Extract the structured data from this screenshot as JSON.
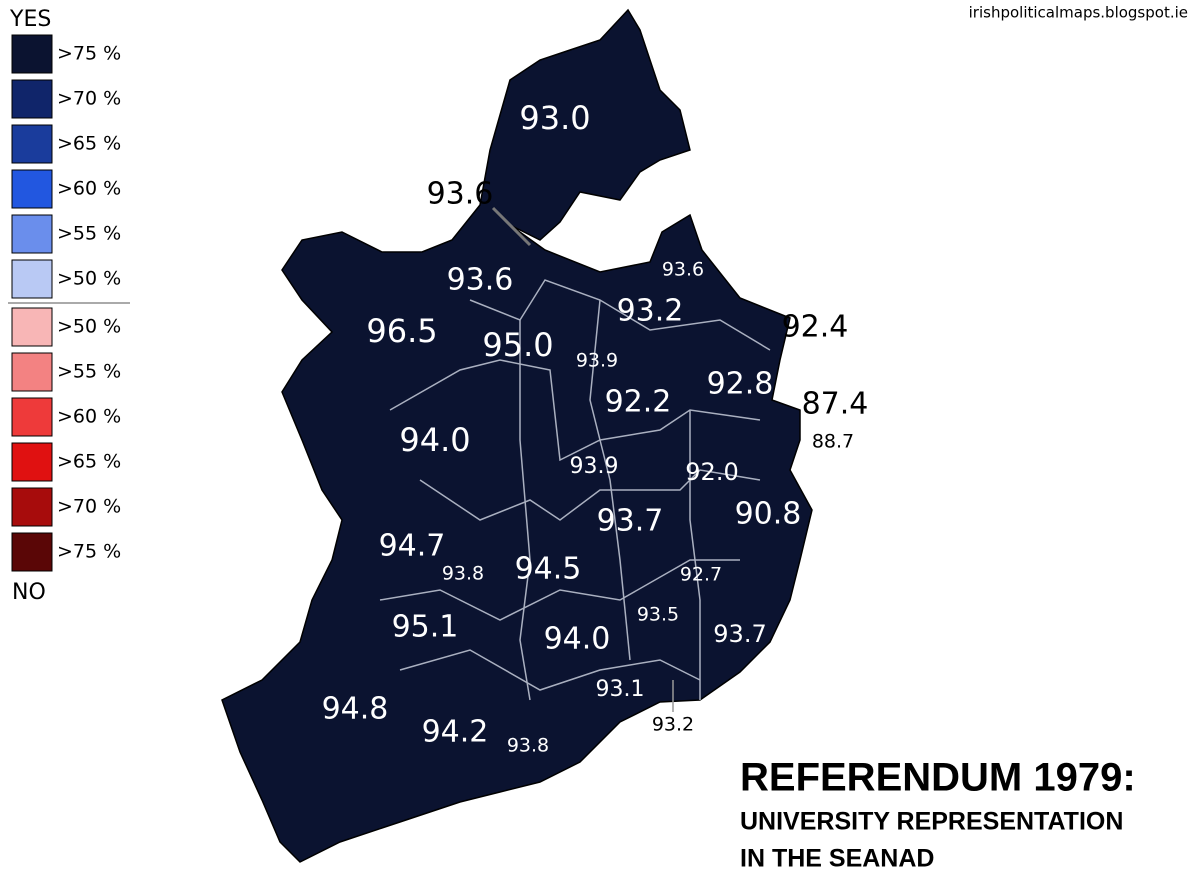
{
  "source": "irishpoliticalmaps.blogspot.ie",
  "title": "REFERENDUM 1979:",
  "subtitle": [
    "UNIVERSITY REPRESENTATION",
    "IN THE SEANAD"
  ],
  "legend": {
    "yes_label": "YES",
    "no_label": "NO",
    "yes_items": [
      {
        "label": ">75 %",
        "color": "#0b1330"
      },
      {
        "label": ">70 %",
        "color": "#10256a"
      },
      {
        "label": ">65 %",
        "color": "#1a3c9c"
      },
      {
        "label": ">60 %",
        "color": "#2257e0"
      },
      {
        "label": ">55 %",
        "color": "#6a8eec"
      },
      {
        "label": ">50 %",
        "color": "#b9c9f4"
      }
    ],
    "no_items": [
      {
        "label": ">50 %",
        "color": "#f8b6b6"
      },
      {
        "label": ">55 %",
        "color": "#f38282"
      },
      {
        "label": ">60 %",
        "color": "#ee3a3a"
      },
      {
        "label": ">65 %",
        "color": "#e01111"
      },
      {
        "label": ">70 %",
        "color": "#a70c0c"
      },
      {
        "label": ">75 %",
        "color": "#5a0606"
      }
    ]
  },
  "map_color": "#0b1330",
  "regions": [
    "93.0",
    "93.6",
    "93.6",
    "93.6",
    "93.2",
    "92.4",
    "96.5",
    "95.0",
    "93.9",
    "92.2",
    "92.8",
    "87.4",
    "88.7",
    "94.0",
    "93.9",
    "92.0",
    "90.8",
    "93.7",
    "94.7",
    "93.8",
    "94.5",
    "92.7",
    "93.5",
    "95.1",
    "94.0",
    "93.7",
    "93.1",
    "93.2",
    "94.8",
    "94.2",
    "93.8"
  ]
}
